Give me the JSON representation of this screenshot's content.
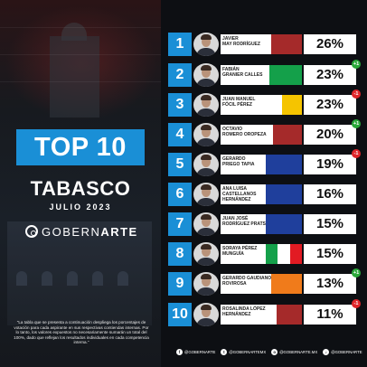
{
  "header": {
    "badge": "TOP 10",
    "state": "TABASCO",
    "date": "JULIO 2023",
    "brand_part1": "GOBERN",
    "brand_part2": "ARTE"
  },
  "disclaimer": "\"La tabla que se presenta a continuación despliega los porcentajes de votación para cada aspirante en sus respectivas contiendas internas. Por lo tanto, los valores expuestos no necesariamente sumarán un total del 100%, dado que reflejan los resultados individuales en cada competencia interna.\"",
  "colors": {
    "accent": "#1a8fd6",
    "up": "#2aa83a",
    "down": "#e0262a",
    "morena": "#a52a2a",
    "pri_green": "#14a04a",
    "pri_red": "#e21b23",
    "prd_yellow": "#f5c400",
    "pan_blue": "#1f3f9c",
    "mc_orange": "#f07b1b"
  },
  "rankings": [
    {
      "rank": "1",
      "name": "JAVIER\nMAY RODRÍGUEZ",
      "pct": "26%",
      "delta": "",
      "party": [
        [
          "#a52a2a",
          1
        ]
      ]
    },
    {
      "rank": "2",
      "name": "FABIÁN\nGRANIER CALLES",
      "pct": "23%",
      "delta": "+1",
      "delta_dir": "up",
      "party": [
        [
          "#14a04a",
          1
        ]
      ]
    },
    {
      "rank": "3",
      "name": "JUAN MANUEL\nFÓCIL PÉREZ",
      "pct": "23%",
      "delta": "-1",
      "delta_dir": "down",
      "party": [
        [
          "#f5c400",
          1
        ]
      ]
    },
    {
      "rank": "4",
      "name": "OCTAVIO\nROMERO OROPEZA",
      "pct": "20%",
      "delta": "+1",
      "delta_dir": "up",
      "party": [
        [
          "#a52a2a",
          1
        ]
      ]
    },
    {
      "rank": "5",
      "name": "GERARDO\nPRIEGO TAPIA",
      "pct": "19%",
      "delta": "-1",
      "delta_dir": "down",
      "party": [
        [
          "#1f3f9c",
          1
        ]
      ]
    },
    {
      "rank": "6",
      "name": "ANA LUISA\nCASTELLANOS\nHERNÁNDEZ",
      "pct": "16%",
      "delta": "",
      "party": [
        [
          "#1f3f9c",
          1
        ]
      ]
    },
    {
      "rank": "7",
      "name": "JUAN JOSÉ\nRODRÍGUEZ PRATS",
      "pct": "15%",
      "delta": "",
      "party": [
        [
          "#1f3f9c",
          1
        ]
      ]
    },
    {
      "rank": "8",
      "name": "SORAYA PÉREZ\nMUNGUÍA",
      "pct": "15%",
      "delta": "",
      "party": [
        [
          "#14a04a",
          0.33
        ],
        [
          "#ffffff",
          0.34
        ],
        [
          "#e21b23",
          0.33
        ]
      ]
    },
    {
      "rank": "9",
      "name": "GERARDO GAUDIANO\nROVIROSA",
      "pct": "13%",
      "delta": "+1",
      "delta_dir": "up",
      "party": [
        [
          "#f07b1b",
          1
        ]
      ]
    },
    {
      "rank": "10",
      "name": "ROSALINDA LÓPEZ\nHERNÁNDEZ",
      "pct": "11%",
      "delta": "-1",
      "delta_dir": "down",
      "party": [
        [
          "#a52a2a",
          1
        ]
      ]
    }
  ],
  "footer": [
    {
      "icon": "facebook-icon",
      "glyph": "f",
      "label": "@GOBERNARTE"
    },
    {
      "icon": "twitter-icon",
      "glyph": "t",
      "label": "@GOBERNARTEMX"
    },
    {
      "icon": "instagram-icon",
      "glyph": "o",
      "label": "@GOBERNARTE.MX"
    },
    {
      "icon": "tiktok-icon",
      "glyph": "♪",
      "label": "@GOBERNARTE"
    }
  ]
}
